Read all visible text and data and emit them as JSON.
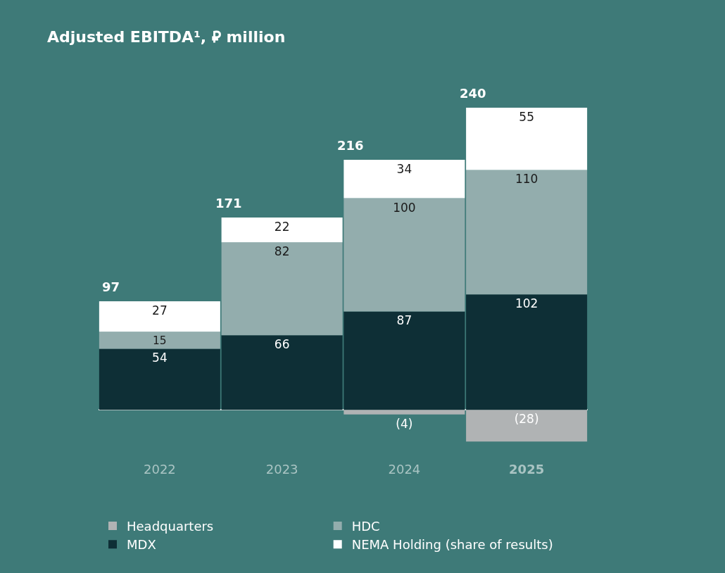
{
  "chart_data": {
    "type": "bar",
    "title": "Adjusted EBITDA¹, ⃁ million",
    "categories": [
      "2022",
      "2023",
      "2024",
      "2025"
    ],
    "stacked": true,
    "series": [
      {
        "name": "Headquarters",
        "color": "#b0b3b4",
        "values": [
          null,
          null,
          -4,
          -28
        ],
        "value_labels": [
          null,
          null,
          "(4)",
          "(28)"
        ]
      },
      {
        "name": "MDX",
        "color": "#0e2f36",
        "values": [
          54,
          66,
          87,
          102
        ]
      },
      {
        "name": "HDC",
        "color": "#93adad",
        "values": [
          15,
          82,
          100,
          110
        ]
      },
      {
        "name": "NEMA Holding (share of results)",
        "color": "#ffffff",
        "values": [
          27,
          22,
          34,
          55
        ]
      }
    ],
    "totals": [
      "97",
      "171",
      "216",
      "240"
    ],
    "data_labels": true,
    "tick_labels": "x",
    "grid": false,
    "legend": "bottom"
  }
}
